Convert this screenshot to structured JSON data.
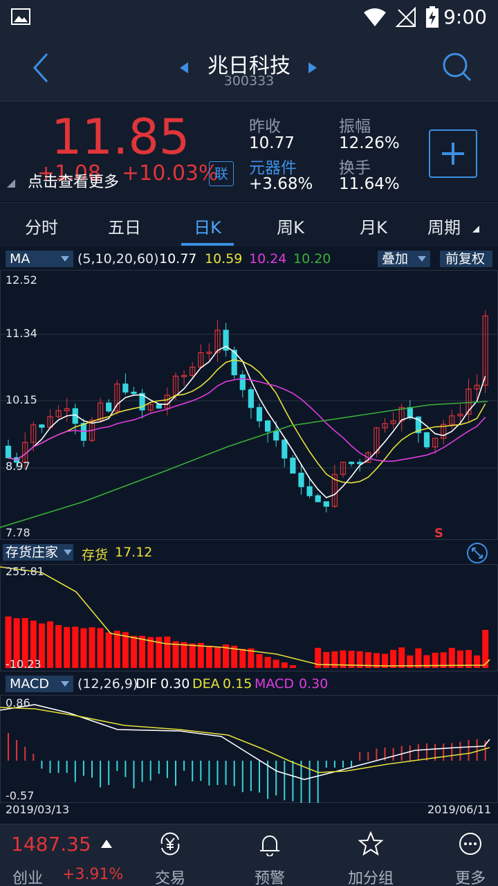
{
  "status": {
    "time": "9:00"
  },
  "header": {
    "title": "兆日科技",
    "code": "300333"
  },
  "quote": {
    "price": "11.85",
    "change": "+1.08",
    "change_pct": "+10.03%",
    "tip": "点击查看更多",
    "lian": "联",
    "prev_close_label": "昨收",
    "prev_close": "10.77",
    "amplitude_label": "振幅",
    "amplitude": "12.26%",
    "sector_label": "元器件",
    "sector_change": "+3.68%",
    "turnover_label": "换手",
    "turnover": "11.64%"
  },
  "tabs": [
    "分时",
    "五日",
    "日K",
    "周K",
    "月K",
    "周期"
  ],
  "ma": {
    "selector": "MA",
    "params": "(5,10,20,60)",
    "v5": "10.77",
    "v10": "10.59",
    "v20": "10.24",
    "v60": "10.20",
    "overlay": "叠加",
    "restore": "前复权",
    "c5": "#ffffff",
    "c10": "#e8e23a",
    "c20": "#e03ce0",
    "c60": "#3ab03a"
  },
  "kline_axis": {
    "top": "12.52",
    "l2": "11.34",
    "l3": "10.15",
    "l4": "8.97",
    "bottom": "7.78",
    "marker": "S"
  },
  "inventory": {
    "selector": "存货庄家",
    "label": "存货",
    "value": "17.12",
    "top": "255.81",
    "bottom": "-10.23"
  },
  "macd": {
    "selector": "MACD",
    "params": "(12,26,9)",
    "dif_label": "DIF",
    "dif": "0.30",
    "dea_label": "DEA",
    "dea": "0.15",
    "macd_label": "MACD",
    "macd": "0.30",
    "top": "0.86",
    "bottom": "-0.57",
    "date_start": "2019/03/13",
    "date_end": "2019/06/11"
  },
  "bottom": {
    "index_value": "1487.35",
    "index_name": "创业",
    "index_change": "+3.91%",
    "items": [
      "交易",
      "预警",
      "加分组",
      "更多"
    ]
  }
}
